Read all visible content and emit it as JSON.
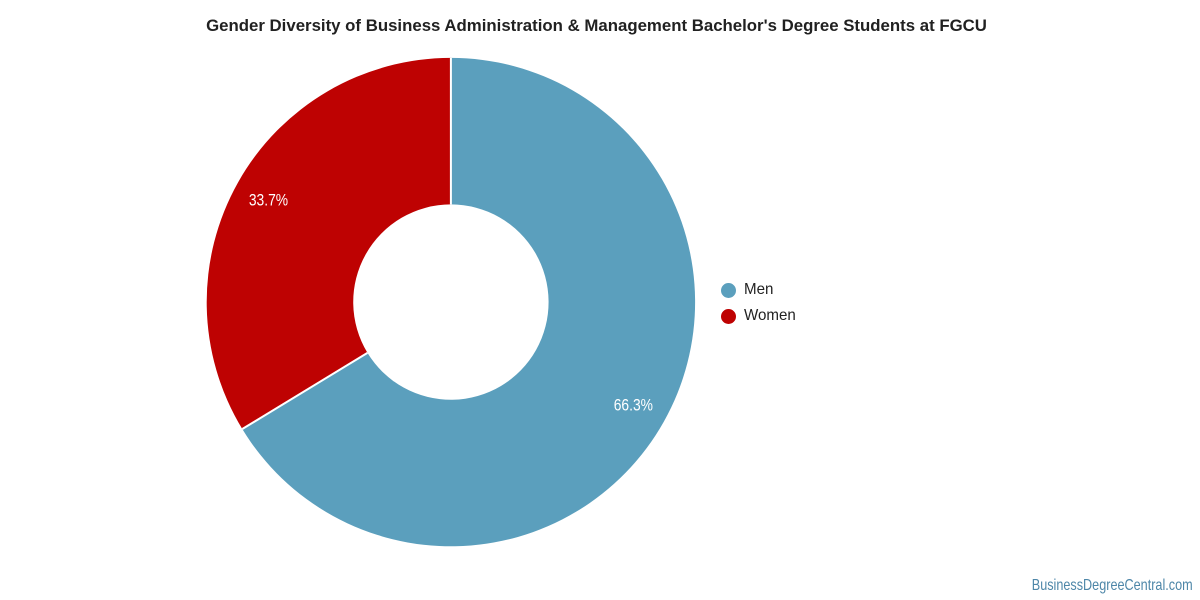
{
  "chart_data": {
    "type": "pie",
    "title": "Gender Diversity of Business Administration & Management Bachelor's Degree Students at FGCU",
    "categories": [
      "Men",
      "Women"
    ],
    "values": [
      66.3,
      33.7
    ],
    "series": [
      {
        "name": "Men",
        "value": 66.3,
        "label": "66.3%",
        "color": "#5B9FBD"
      },
      {
        "name": "Women",
        "value": 33.7,
        "label": "33.7%",
        "color": "#BE0202"
      }
    ],
    "hole_ratio": 0.4,
    "start_angle_deg": 0,
    "direction": "clockwise",
    "legend_position": "right",
    "slice_label_color": "#FFFFFF",
    "slice_border_color": "#FFFFFF",
    "background_color": "#FFFFFF"
  },
  "title_color": "#212121",
  "legend_text_color": "#222222",
  "footer": {
    "text": "BusinessDegreeCentral.com",
    "color": "#4D86A8"
  }
}
